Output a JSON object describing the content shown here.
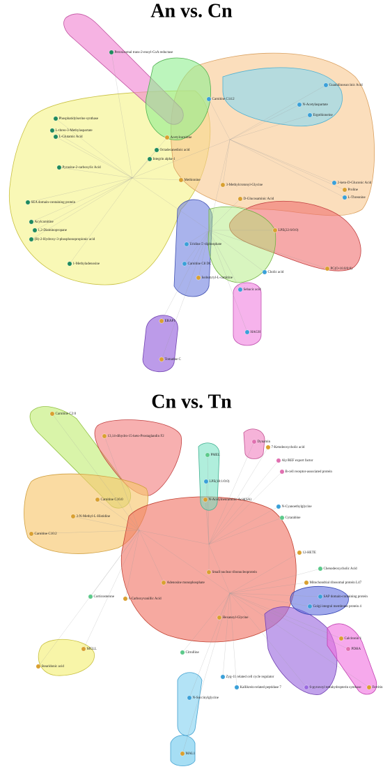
{
  "panels": [
    {
      "title": "An vs. Cn",
      "nodes": [
        {
          "label": "Peroxisomal trans-2-enoyl-CoA reductase",
          "color": "#1f8a5e"
        },
        {
          "label": "Guanidinosuccinic Acid",
          "color": "#3aa0d8"
        },
        {
          "label": "N-Acetylaspartate",
          "color": "#3aa0d8"
        },
        {
          "label": "Ergothioneine",
          "color": "#3aa0d8"
        },
        {
          "label": "Carnitine C14:2",
          "color": "#3aa0d8"
        },
        {
          "label": "Acetylcarnitine",
          "color": "#d9a030"
        },
        {
          "label": "Phosphatidylserine synthase",
          "color": "#1f8a5e"
        },
        {
          "label": "L-threo-3-Methylaspartate",
          "color": "#1f8a5e"
        },
        {
          "label": "L-Glutamic Acid",
          "color": "#1f8a5e"
        },
        {
          "label": "Pyrazine-2-carboxylic Acid",
          "color": "#1f8a5e"
        },
        {
          "label": "SEA domain-containing protein",
          "color": "#1f8a5e"
        },
        {
          "label": "Acylcarnitine",
          "color": "#1f8a5e"
        },
        {
          "label": "1,2-Diaminopropane",
          "color": "#1f8a5e"
        },
        {
          "label": "(R)-2-Hydroxy-3-phosphonopropionic acid",
          "color": "#1f8a5e"
        },
        {
          "label": "1-Methyladenosine",
          "color": "#1f8a5e"
        },
        {
          "label": "Octadecanedioic acid",
          "color": "#1f8a5e"
        },
        {
          "label": "Integrin alpha-1",
          "color": "#1f8a5e"
        },
        {
          "label": "Methionine",
          "color": "#d9a030"
        },
        {
          "label": "3-Methylcrotonyl-Glycine",
          "color": "#d9a030"
        },
        {
          "label": "D-Glucosaminic Acid",
          "color": "#d9a030"
        },
        {
          "label": "L-Threonine",
          "color": "#3aa0d8"
        },
        {
          "label": "Proline",
          "color": "#d9a030"
        },
        {
          "label": "2-keto-D-Gluconic Acid",
          "color": "#3aa0d8"
        },
        {
          "label": "LPE(22:6/0:0)",
          "color": "#d9a030"
        },
        {
          "label": "PC(O-16:0/0:0)",
          "color": "#d9a030"
        },
        {
          "label": "Cholic acid",
          "color": "#3aa0d8"
        },
        {
          "label": "Uridine 5'-diphosphate",
          "color": "#3aa0d8"
        },
        {
          "label": "Carnitine C8 DC",
          "color": "#3aa0d8"
        },
        {
          "label": "Isobutyryl-L-carnitine",
          "color": "#d9a030"
        },
        {
          "label": "Sebacic acid",
          "color": "#3aa0d8"
        },
        {
          "label": "HAGH",
          "color": "#3aa0d8"
        },
        {
          "label": "ERAP1",
          "color": "#d9a030"
        },
        {
          "label": "Tomatine C",
          "color": "#d9a030"
        }
      ]
    },
    {
      "title": "Cn vs. Tn",
      "nodes": [
        {
          "label": "Carnitine C2:0",
          "color": "#d9a030"
        },
        {
          "label": "13,14-dihydro-15-keto-Prostaglandin F2",
          "color": "#d9a030"
        },
        {
          "label": "LPE(18:1/0:0)",
          "color": "#3aa0d8"
        },
        {
          "label": "PMEL",
          "color": "#5cc98a"
        },
        {
          "label": "Carnitine C16:0",
          "color": "#d9a030"
        },
        {
          "label": "3-N-Methyl-L-Histidine",
          "color": "#d9a030"
        },
        {
          "label": "Carnitine C10:2",
          "color": "#d9a030"
        },
        {
          "label": "Dynamin",
          "color": "#e070b0"
        },
        {
          "label": "7-Ketodeoxycholic acid",
          "color": "#d9a030"
        },
        {
          "label": "Aly/REF export factor",
          "color": "#e070b0"
        },
        {
          "label": "B-cell receptor-associated protein",
          "color": "#e070b0"
        },
        {
          "label": "N-Cyanoethylglycine",
          "color": "#3aa0d8"
        },
        {
          "label": "Cytarabine",
          "color": "#5cc98a"
        },
        {
          "label": "12-HETE",
          "color": "#d9a030"
        },
        {
          "label": "Chenodeoxycholic Acid",
          "color": "#5cc98a"
        },
        {
          "label": "Mitochondrial ribosomal protein L47",
          "color": "#d9a030"
        },
        {
          "label": "SAP domain-containing protein",
          "color": "#3aa0d8"
        },
        {
          "label": "Golgi integral membrane protein 4",
          "color": "#3aa0d8"
        },
        {
          "label": "Corticosterone",
          "color": "#5cc98a"
        },
        {
          "label": "1-Carboxyvanillic Acid",
          "color": "#d9a030"
        },
        {
          "label": "Adenosine monophosphate",
          "color": "#d9a030"
        },
        {
          "label": "N-Acetylneuraminic Acid(SA)",
          "color": "#d9a030"
        },
        {
          "label": "Small nuclear ribonucleoprotein",
          "color": "#d9a030"
        },
        {
          "label": "Hexanoyl-Glycine",
          "color": "#d9a030"
        },
        {
          "label": "MGLL",
          "color": "#d9a030"
        },
        {
          "label": "Stearidonic acid",
          "color": "#d9a030"
        },
        {
          "label": "Citrulline",
          "color": "#5cc98a"
        },
        {
          "label": "Zyg-11 related cell cycle regulator",
          "color": "#3aa0d8"
        },
        {
          "label": "Kallikrein-related peptidase 7",
          "color": "#3aa0d8"
        },
        {
          "label": "N-Succinylglycine",
          "color": "#3aa0d8"
        },
        {
          "label": "MAL1",
          "color": "#d9a030"
        },
        {
          "label": "Calcitonin 1",
          "color": "#d9a030"
        },
        {
          "label": "PDHA",
          "color": "#e070b0"
        },
        {
          "label": "Ferritin",
          "color": "#d9a030"
        },
        {
          "label": "6-pyruvoyl tetrahydropterin synthase",
          "color": "#9a6ae0"
        }
      ]
    }
  ]
}
